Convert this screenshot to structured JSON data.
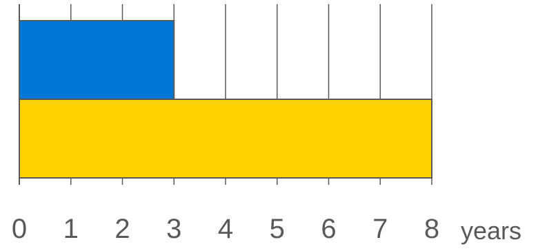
{
  "chart_data": {
    "type": "bar",
    "orientation": "horizontal",
    "bars": [
      {
        "value": 3,
        "color": "#0078D7"
      },
      {
        "value": 8,
        "color": "#FFD200"
      }
    ],
    "x_ticks": [
      "0",
      "1",
      "2",
      "3",
      "4",
      "5",
      "6",
      "7",
      "8"
    ],
    "xlim": [
      0,
      8
    ],
    "unit_label": "years",
    "grid": "vertical",
    "axis_color": "#595959",
    "grid_color": "#595959",
    "tick_label_color": "#595959"
  }
}
